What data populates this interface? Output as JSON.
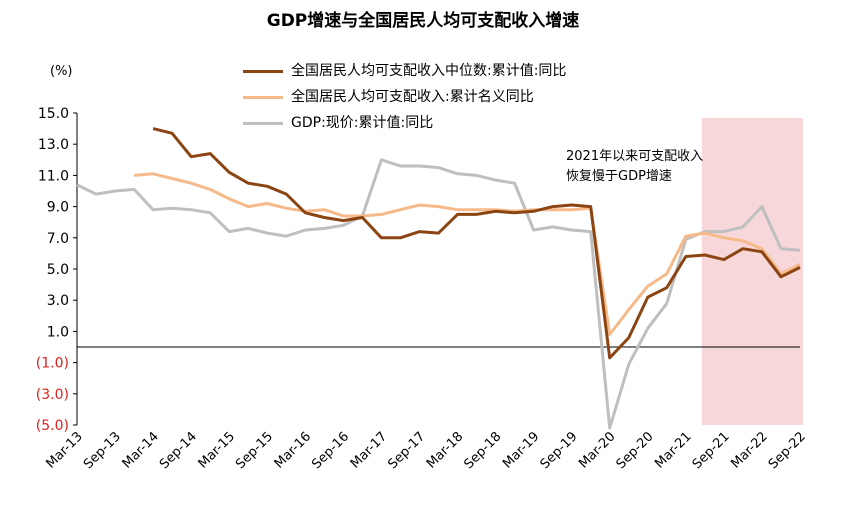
{
  "chart_data": {
    "type": "line",
    "title": "GDP增速与全国居民人均可支配收入增速",
    "unit": "(%)",
    "xlabel": "",
    "ylabel": "(%)",
    "ylim": [
      -5.0,
      15.0
    ],
    "y_ticks": [
      15.0,
      13.0,
      11.0,
      9.0,
      7.0,
      5.0,
      3.0,
      1.0,
      -1.0,
      -3.0,
      -5.0
    ],
    "y_tick_labels": [
      "15.0",
      "13.0",
      "11.0",
      "9.0",
      "7.0",
      "5.0",
      "3.0",
      "1.0",
      "(1.0)",
      "(3.0)",
      "(5.0)"
    ],
    "x": [
      "Mar-13",
      "Jun-13",
      "Sep-13",
      "Dec-13",
      "Mar-14",
      "Jun-14",
      "Sep-14",
      "Dec-14",
      "Mar-15",
      "Jun-15",
      "Sep-15",
      "Dec-15",
      "Mar-16",
      "Jun-16",
      "Sep-16",
      "Dec-16",
      "Mar-17",
      "Jun-17",
      "Sep-17",
      "Dec-17",
      "Mar-18",
      "Jun-18",
      "Sep-18",
      "Dec-18",
      "Mar-19",
      "Jun-19",
      "Sep-19",
      "Dec-19",
      "Mar-20",
      "Jun-20",
      "Sep-20",
      "Dec-20",
      "Mar-21",
      "Jun-21",
      "Sep-21",
      "Dec-21",
      "Mar-22",
      "Jun-22",
      "Sep-22"
    ],
    "x_tick_labels": [
      "Mar-13",
      "Sep-13",
      "Mar-14",
      "Sep-14",
      "Mar-15",
      "Sep-15",
      "Mar-16",
      "Sep-16",
      "Mar-17",
      "Sep-17",
      "Mar-18",
      "Sep-18",
      "Mar-19",
      "Sep-19",
      "Mar-20",
      "Sep-20",
      "Mar-21",
      "Sep-21",
      "Mar-22",
      "Sep-22"
    ],
    "series": [
      {
        "name": "全国居民人均可支配收入中位数:累计值:同比",
        "color": "#8B4513",
        "values": [
          null,
          null,
          null,
          null,
          14.0,
          13.7,
          12.2,
          12.4,
          11.2,
          10.5,
          10.3,
          9.8,
          8.6,
          8.3,
          8.1,
          8.3,
          7.0,
          7.0,
          7.4,
          7.3,
          8.5,
          8.5,
          8.7,
          8.6,
          8.7,
          9.0,
          9.1,
          9.0,
          -0.7,
          0.6,
          3.2,
          3.8,
          5.8,
          5.9,
          5.6,
          6.3,
          6.1,
          4.5,
          5.1
        ]
      },
      {
        "name": "全国居民人均可支配收入:累计名义同比",
        "color": "#F5B98A",
        "values": [
          null,
          null,
          null,
          11.0,
          11.1,
          10.8,
          10.5,
          10.1,
          9.5,
          9.0,
          9.2,
          8.9,
          8.7,
          8.8,
          8.4,
          8.4,
          8.5,
          8.8,
          9.1,
          9.0,
          8.8,
          8.8,
          8.8,
          8.7,
          8.8,
          8.8,
          8.8,
          8.9,
          0.8,
          2.4,
          3.9,
          4.7,
          7.1,
          7.3,
          7.0,
          6.8,
          6.3,
          4.7,
          5.3
        ]
      },
      {
        "name": "GDP:现价:累计值:同比",
        "color": "#BFBFBF",
        "values": [
          10.4,
          9.8,
          10.0,
          10.1,
          8.8,
          8.9,
          8.8,
          8.6,
          7.4,
          7.6,
          7.3,
          7.1,
          7.5,
          7.6,
          7.8,
          8.4,
          12.0,
          11.6,
          11.6,
          11.5,
          11.1,
          11.0,
          10.7,
          10.5,
          7.5,
          7.7,
          7.5,
          7.4,
          -5.2,
          -1.1,
          1.2,
          2.8,
          6.9,
          7.4,
          7.4,
          7.7,
          9.0,
          6.3,
          6.2
        ]
      }
    ],
    "highlight": {
      "x_start": "Jun-21",
      "x_end": "Sep-22",
      "color": "#F8D7DA"
    },
    "annotation": {
      "line1": "2021年以来可支配收入",
      "line2": "恢复慢于GDP增速"
    },
    "grid": false,
    "legend_position": "top-center"
  }
}
